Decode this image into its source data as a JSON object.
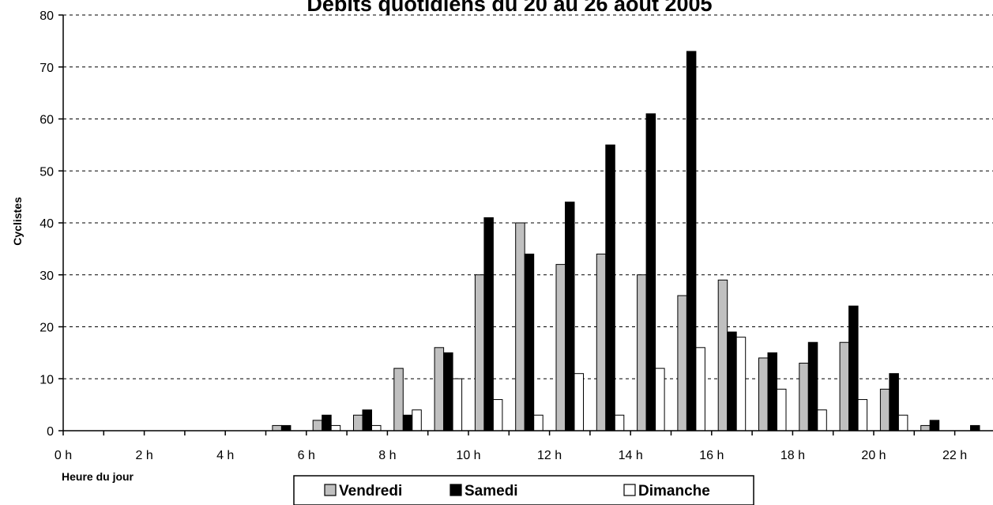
{
  "chart_data": {
    "type": "bar",
    "title": "Débits quotidiens du 20 au 26 août 2005",
    "xlabel": "Heure du jour",
    "ylabel": "Cyclistes",
    "ylim": [
      0,
      80
    ],
    "yticks": [
      "0",
      "10",
      "20",
      "30",
      "40",
      "50",
      "60",
      "70",
      "80"
    ],
    "xticks": [
      "0 h",
      "2 h",
      "4 h",
      "6 h",
      "8 h",
      "10 h",
      "12 h",
      "14 h",
      "16 h",
      "18 h",
      "20 h",
      "22 h"
    ],
    "categories": [
      0,
      1,
      2,
      3,
      4,
      5,
      6,
      7,
      8,
      9,
      10,
      11,
      12,
      13,
      14,
      15,
      16,
      17,
      18,
      19,
      20,
      21,
      22,
      23
    ],
    "grid": "horizontal dashed",
    "legend_position": "bottom",
    "series": [
      {
        "name": "Vendredi",
        "color": "#c0c0c0",
        "values": [
          0,
          0,
          0,
          0,
          0,
          1,
          2,
          3,
          12,
          16,
          30,
          40,
          32,
          34,
          30,
          26,
          29,
          14,
          13,
          17,
          8,
          1,
          0,
          0
        ]
      },
      {
        "name": "Samedi",
        "color": "#000000",
        "values": [
          0,
          0,
          0,
          0,
          0,
          1,
          3,
          4,
          3,
          15,
          41,
          34,
          44,
          55,
          61,
          73,
          19,
          15,
          17,
          24,
          11,
          2,
          1,
          0
        ]
      },
      {
        "name": "Dimanche",
        "color": "#ffffff",
        "values": [
          0,
          0,
          0,
          0,
          0,
          0,
          1,
          1,
          4,
          10,
          6,
          3,
          11,
          3,
          12,
          16,
          18,
          8,
          4,
          6,
          3,
          0,
          0,
          0
        ]
      }
    ]
  }
}
